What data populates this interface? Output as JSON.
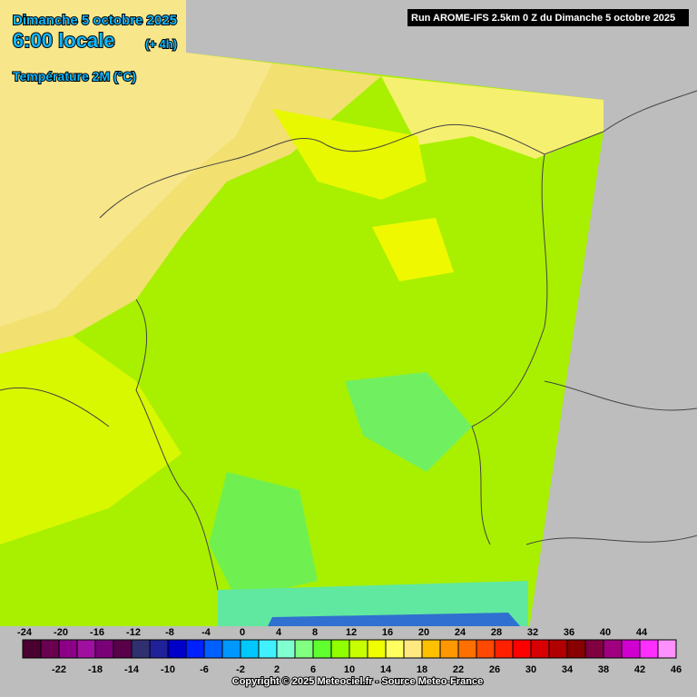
{
  "header": {
    "date": "Dimanche 5 octobre 2025",
    "time": "6:00 locale",
    "offset": "(+ 4h)",
    "variable": "Température 2M (°C)"
  },
  "run_label": "Run AROME-IFS 2.5km 0 Z du Dimanche 5 octobre 2025",
  "legend": {
    "bins": [
      -24,
      -22,
      -20,
      -18,
      -16,
      -14,
      -12,
      -10,
      -8,
      -6,
      -4,
      -2,
      0,
      2,
      4,
      6,
      8,
      10,
      12,
      14,
      16,
      18,
      20,
      22,
      24,
      26,
      28,
      30,
      32,
      34,
      36,
      38,
      40,
      42,
      44,
      46
    ],
    "colors": [
      "#4a0030",
      "#6a0050",
      "#8c0088",
      "#a010a0",
      "#7a0078",
      "#5a004a",
      "#303070",
      "#202098",
      "#0000c8",
      "#0020ff",
      "#0060ff",
      "#0098ff",
      "#00c8ff",
      "#40f0ff",
      "#80ffd0",
      "#80ff80",
      "#60ff30",
      "#90ff00",
      "#c8ff00",
      "#f0ff00",
      "#ffff60",
      "#ffe880",
      "#ffc000",
      "#ff9800",
      "#ff7000",
      "#ff4800",
      "#ff2000",
      "#ff0000",
      "#d80000",
      "#b00000",
      "#880000",
      "#800040",
      "#a00080",
      "#d000d0",
      "#ff30ff",
      "#ff90ff"
    ]
  },
  "copyright": "Copyright © 2025 Meteociel.fr - Source Meteo-France"
}
